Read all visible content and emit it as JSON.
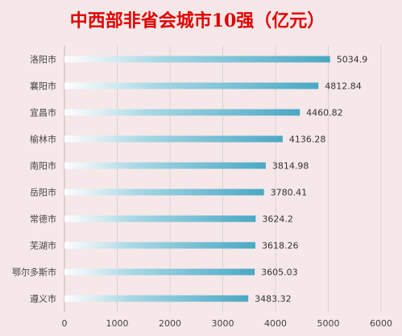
{
  "chart_data": {
    "type": "bar",
    "orientation": "horizontal",
    "title": "中西部非省会城市10强（亿元）",
    "categories": [
      "洛阳市",
      "襄阳市",
      "宜昌市",
      "榆林市",
      "南阳市",
      "岳阳市",
      "常德市",
      "芜湖市",
      "鄂尔多斯市",
      "遵义市"
    ],
    "values": [
      5034.9,
      4812.84,
      4460.82,
      4136.28,
      3814.98,
      3780.41,
      3624.2,
      3618.26,
      3605.03,
      3483.32
    ],
    "value_labels": [
      "5034.9",
      "4812.84",
      "4460.82",
      "4136.28",
      "3814.98",
      "3780.41",
      "3624.2",
      "3618.26",
      "3605.03",
      "3483.32"
    ],
    "xlim": [
      0,
      6000
    ],
    "xticks": [
      "0",
      "1000",
      "2000",
      "3000",
      "4000",
      "5000",
      "6000"
    ],
    "grid": true,
    "bar_color": "#4aa8c4",
    "title_color": "#e00000",
    "background": "#f6e8e8"
  }
}
